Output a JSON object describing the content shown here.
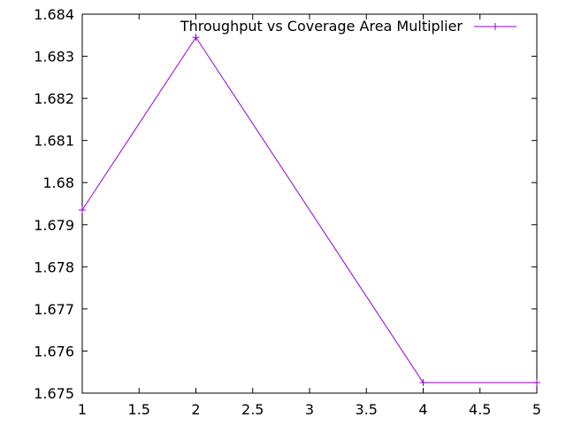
{
  "chart_data": {
    "type": "line",
    "title": "",
    "xlabel": "",
    "ylabel": "",
    "xlim": [
      1,
      5
    ],
    "ylim": [
      1.675,
      1.684
    ],
    "x_ticks": [
      1,
      1.5,
      2,
      2.5,
      3,
      3.5,
      4,
      4.5,
      5
    ],
    "x_tick_labels": [
      "1",
      "1.5",
      "2",
      "2.5",
      "3",
      "3.5",
      "4",
      "4.5",
      "5"
    ],
    "y_ticks": [
      1.675,
      1.676,
      1.677,
      1.678,
      1.679,
      1.68,
      1.681,
      1.682,
      1.683,
      1.684
    ],
    "y_tick_labels": [
      "1.675",
      "1.676",
      "1.677",
      "1.678",
      "1.679",
      "1.68",
      "1.681",
      "1.682",
      "1.683",
      "1.684"
    ],
    "grid": false,
    "legend_position": "top-right",
    "series": [
      {
        "name": "Throughput vs Coverage Area Multiplier",
        "color": "#9400d3",
        "marker": "plus",
        "x": [
          1,
          2,
          4,
          5
        ],
        "y": [
          1.67935,
          1.68345,
          1.67525,
          1.67525
        ]
      }
    ]
  }
}
